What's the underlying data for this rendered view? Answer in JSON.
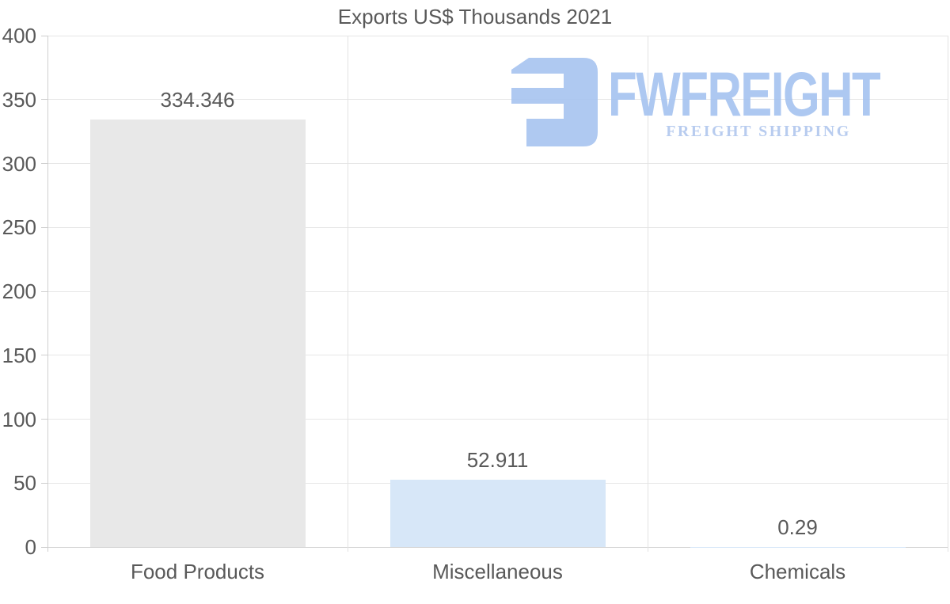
{
  "chart_data": {
    "type": "bar",
    "title": "Exports US$ Thousands 2021",
    "categories": [
      "Food Products",
      "Miscellaneous",
      "Chemicals"
    ],
    "values": [
      334.346,
      52.911,
      0.29
    ],
    "value_labels": [
      "334.346",
      "52.911",
      "0.29"
    ],
    "bar_colors": [
      "#e8e8e8",
      "#d7e7f8",
      "#d7e7f8"
    ],
    "xlabel": "",
    "ylabel": "",
    "ylim": [
      0,
      400
    ],
    "yticks": [
      0,
      50,
      100,
      150,
      200,
      250,
      300,
      350,
      400
    ],
    "grid": true,
    "legend": false
  },
  "logo": {
    "brand": "FWFREIGHT",
    "tagline": "FREIGHT SHIPPING",
    "color": "#a9c5f0"
  },
  "colors": {
    "bar_gray": "#e8e8e8",
    "bar_blue": "#d7e7f8",
    "gridline": "#e6e6e6",
    "axis": "#cfcfcf",
    "text": "#595959",
    "logo_blue": "#a9c5f0"
  }
}
